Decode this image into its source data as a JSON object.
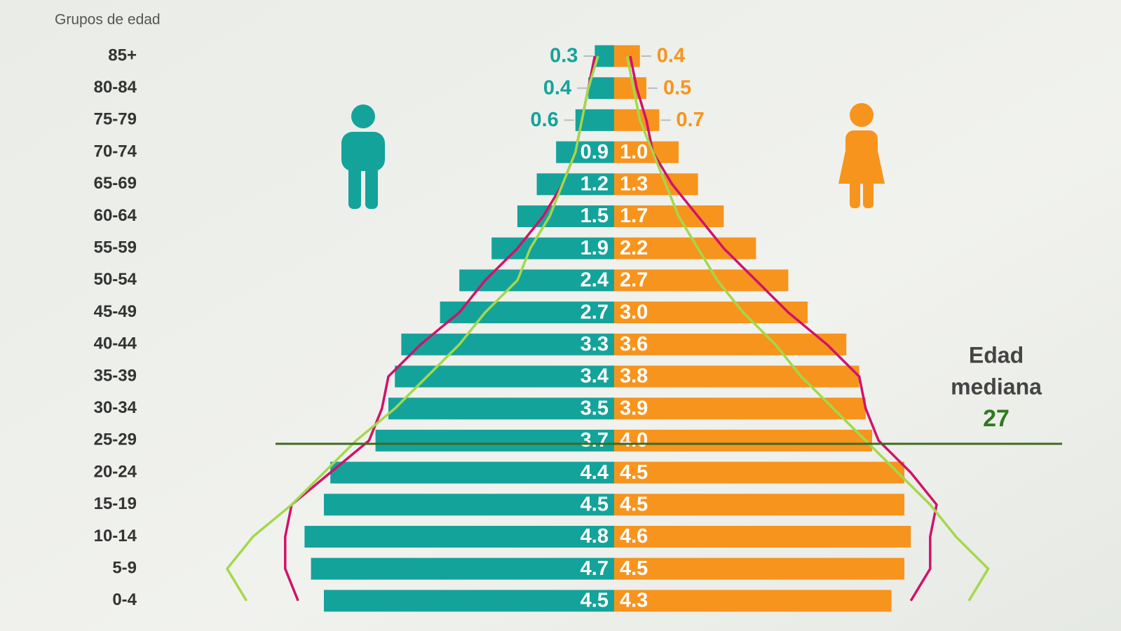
{
  "chart_data": {
    "type": "pyramid",
    "axis_title": "Grupos de edad",
    "categories": [
      "85+",
      "80-84",
      "75-79",
      "70-74",
      "65-69",
      "60-64",
      "55-59",
      "50-54",
      "45-49",
      "40-44",
      "35-39",
      "30-34",
      "25-29",
      "20-24",
      "15-19",
      "10-14",
      "5-9",
      "0-4"
    ],
    "series": [
      {
        "side": "left",
        "color": "#14a39b",
        "values": [
          0.3,
          0.4,
          0.6,
          0.9,
          1.2,
          1.5,
          1.9,
          2.4,
          2.7,
          3.3,
          3.4,
          3.5,
          3.7,
          4.4,
          4.5,
          4.8,
          4.7,
          4.5
        ]
      },
      {
        "side": "right",
        "color": "#f7941d",
        "values": [
          0.4,
          0.5,
          0.7,
          1.0,
          1.3,
          1.7,
          2.2,
          2.7,
          3.0,
          3.6,
          3.8,
          3.9,
          4.0,
          4.5,
          4.5,
          4.6,
          4.5,
          4.3
        ],
        "value_labels": [
          "0.4",
          "0.5",
          "0.7",
          "1.0",
          "1.3",
          "1.7",
          "2.2",
          "2.7",
          "3.0",
          "3.6",
          "3.8",
          "3.9",
          "4.0",
          "4.5",
          "4.5",
          "4.6",
          "4.5",
          "4.3"
        ]
      }
    ],
    "lines": [
      {
        "color": "#d1126b",
        "left": [
          0.3,
          0.4,
          0.5,
          0.6,
          0.8,
          1.1,
          1.5,
          2.0,
          2.4,
          3.0,
          3.5,
          3.6,
          3.8,
          4.4,
          5.0,
          5.1,
          5.1,
          4.9
        ],
        "right": [
          0.25,
          0.35,
          0.5,
          0.6,
          0.9,
          1.3,
          1.7,
          2.2,
          2.7,
          3.3,
          3.8,
          3.9,
          4.1,
          4.6,
          5.0,
          4.9,
          4.9,
          4.6
        ]
      },
      {
        "color": "#a3d84c",
        "left": [
          0.25,
          0.4,
          0.5,
          0.6,
          0.8,
          1.0,
          1.3,
          1.5,
          2.0,
          2.4,
          2.9,
          3.4,
          4.0,
          4.5,
          5.0,
          5.6,
          6.0,
          5.7
        ],
        "right": [
          0.2,
          0.3,
          0.4,
          0.6,
          0.8,
          1.0,
          1.3,
          1.6,
          2.0,
          2.5,
          2.9,
          3.4,
          3.9,
          4.4,
          4.9,
          5.3,
          5.8,
          5.5
        ]
      }
    ],
    "median": {
      "label": [
        "Edad",
        "mediana"
      ],
      "value": 27,
      "color": "#2f7a1f",
      "line_color": "#3d6b22"
    }
  }
}
